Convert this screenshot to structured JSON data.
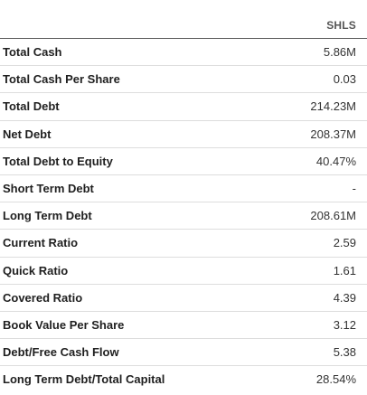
{
  "table": {
    "column_header": "SHLS",
    "rows": [
      {
        "label": "Total Cash",
        "value": "5.86M"
      },
      {
        "label": "Total Cash Per Share",
        "value": "0.03"
      },
      {
        "label": "Total Debt",
        "value": "214.23M"
      },
      {
        "label": "Net Debt",
        "value": "208.37M"
      },
      {
        "label": "Total Debt to Equity",
        "value": "40.47%"
      },
      {
        "label": "Short Term Debt",
        "value": "-"
      },
      {
        "label": "Long Term Debt",
        "value": "208.61M"
      },
      {
        "label": "Current Ratio",
        "value": "2.59"
      },
      {
        "label": "Quick Ratio",
        "value": "1.61"
      },
      {
        "label": "Covered Ratio",
        "value": "4.39"
      },
      {
        "label": "Book Value Per Share",
        "value": "3.12"
      },
      {
        "label": "Debt/Free Cash Flow",
        "value": "5.38"
      },
      {
        "label": "Long Term Debt/Total Capital",
        "value": "28.54%"
      }
    ]
  }
}
